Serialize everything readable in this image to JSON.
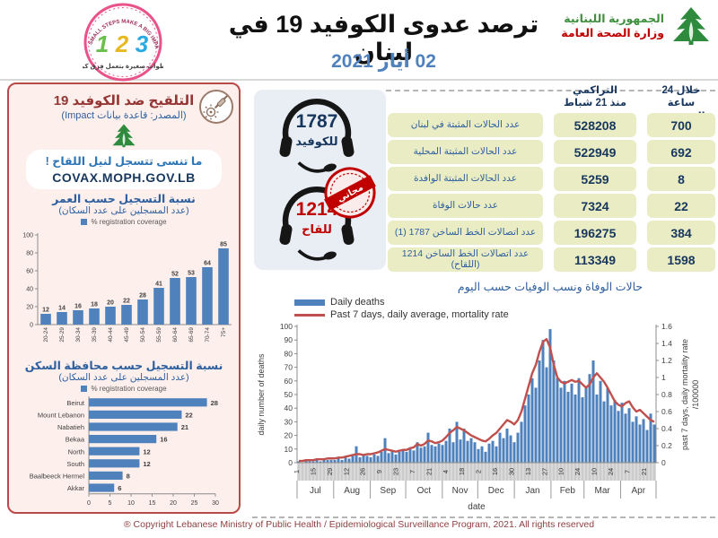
{
  "colors": {
    "bar_blue": "#4f81bd",
    "line_red": "#c0504d",
    "table_cell_bg": "#eaecc3",
    "navy_text": "#17375e",
    "panel_bg": "#fcefec",
    "panel_border": "#b94a48",
    "blue_text": "#2e5f9e",
    "dark_red_title": "#943634",
    "hotline_red": "#c00000",
    "date_blue": "#4f81bd"
  },
  "header": {
    "ministry": {
      "line1": "الجمهورية اللبنانية",
      "line2": "وزارة الصحة العامة"
    },
    "title": "ترصد عدوى الكوفيد 19 في لبنان",
    "date": "02 أيار 2021",
    "campaign_badge": {
      "arc_text": "SMALL STEPS MAKE A BIG IMPACT",
      "numbers": [
        "1",
        "2",
        "3"
      ],
      "bottom_text": "خطوات صغيرة بتعمل فرق كبير"
    }
  },
  "vaccination_panel": {
    "title": "التلقيح ضد الكوفيد 19",
    "source": "(المصدر: قاعدة بيانات Impact)",
    "reminder": "ما تنسى تتسجل لنيل اللقاح !",
    "covax_url": "COVAX.MOPH.GOV.LB"
  },
  "hotlines": {
    "covid": {
      "number": "1787",
      "label": "للكوفيد"
    },
    "vaccine": {
      "number": "1214",
      "label": "للقاح"
    },
    "stamp_text": "مجاني"
  },
  "stats_table": {
    "header_24h_line1": "خلال 24 ساعة",
    "header_24h_line2": "المنصرمة",
    "header_cum_line1": "التراكمي",
    "header_cum_line2": "منذ 21 شباط",
    "rows": [
      {
        "label": "عدد الحالات المثبتة في لبنان",
        "cumulative": "528208",
        "last_24h": "700"
      },
      {
        "label": "عدد الحالات المثبتة المحلية",
        "cumulative": "522949",
        "last_24h": "692"
      },
      {
        "label": "عدد الحالات المثبتة الوافدة",
        "cumulative": "5259",
        "last_24h": "8"
      },
      {
        "label": "عدد حالات الوفاة",
        "cumulative": "7324",
        "last_24h": "22"
      },
      {
        "label": "عدد اتصالات الخط الساخن 1787 (1)",
        "cumulative": "196275",
        "last_24h": "384"
      },
      {
        "label": "عدد اتصالات الخط الساخن 1214 (اللقاح)",
        "cumulative": "113349",
        "last_24h": "1598"
      }
    ]
  },
  "footer": "® Copyright Lebanese Ministry of Public Health / Epidemiological Surveillance Program, 2021. All rights reserved",
  "chart_data": [
    {
      "id": "age_registration",
      "type": "bar",
      "title": "نسبة التسجيل حسب العمر",
      "subtitle": "(عدد المسجلين  على عدد السكان)",
      "legend": "% registration coverage",
      "categories": [
        "20-24",
        "25-29",
        "30-34",
        "35-39",
        "40-44",
        "45-49",
        "50-54",
        "55-59",
        "60-64",
        "65-69",
        "70-74",
        "75+"
      ],
      "values": [
        12,
        14,
        16,
        18,
        20,
        22,
        28,
        41,
        52,
        53,
        64,
        85
      ],
      "ylim": [
        0,
        100
      ],
      "yticks": [
        0,
        20,
        40,
        60,
        80,
        100
      ],
      "bar_color": "#4f81bd"
    },
    {
      "id": "governorate_registration",
      "type": "bar",
      "orientation": "horizontal",
      "title": "نسبة التسجيل حسب محافظة السكن",
      "subtitle": "(عدد المسجلين  على عدد السكان)",
      "legend": "% registration coverage",
      "categories": [
        "Beirut",
        "Mount Lebanon",
        "Nabatieh",
        "Bekaa",
        "North",
        "South",
        "Baalbeeck Hermel",
        "Akkar"
      ],
      "values": [
        28,
        22,
        21,
        16,
        12,
        12,
        8,
        6
      ],
      "xlim": [
        0,
        30
      ],
      "xticks": [
        0,
        5,
        10,
        15,
        20,
        25,
        30
      ],
      "bar_color": "#4f81bd"
    },
    {
      "id": "daily_deaths",
      "type": "bar+line",
      "title": "حالات الوفاة ونسب الوفيات حسب اليوم",
      "xlabel": "date",
      "ylabel_left": "daily number of deaths",
      "ylabel_right": "past 7 days, daily mortality rate",
      "ylabel_right2": "/100000",
      "ylim_left": [
        0,
        100
      ],
      "ylim_right": [
        0,
        1.6
      ],
      "months": [
        {
          "name": "Jul",
          "days": 31
        },
        {
          "name": "Aug",
          "days": 31
        },
        {
          "name": "Sep",
          "days": 30
        },
        {
          "name": "Oct",
          "days": 31
        },
        {
          "name": "Nov",
          "days": 30
        },
        {
          "name": "Dec",
          "days": 31
        },
        {
          "name": "Jan",
          "days": 31
        },
        {
          "name": "Feb",
          "days": 28
        },
        {
          "name": "Mar",
          "days": 31
        },
        {
          "name": "Apr",
          "days": 30
        }
      ],
      "total_days": 304,
      "day_ticks": [
        {
          "label": "1",
          "day": 0
        },
        {
          "label": "15",
          "day": 14
        },
        {
          "label": "29",
          "day": 28
        },
        {
          "label": "12",
          "day": 42
        },
        {
          "label": "26",
          "day": 56
        },
        {
          "label": "9",
          "day": 70
        },
        {
          "label": "23",
          "day": 84
        },
        {
          "label": "7",
          "day": 98
        },
        {
          "label": "21",
          "day": 112
        },
        {
          "label": "4",
          "day": 126
        },
        {
          "label": "18",
          "day": 140
        },
        {
          "label": "2",
          "day": 154
        },
        {
          "label": "16",
          "day": 168
        },
        {
          "label": "30",
          "day": 182
        },
        {
          "label": "13",
          "day": 196
        },
        {
          "label": "27",
          "day": 210
        },
        {
          "label": "10",
          "day": 224
        },
        {
          "label": "24",
          "day": 238
        },
        {
          "label": "10",
          "day": 252
        },
        {
          "label": "24",
          "day": 266
        },
        {
          "label": "7",
          "day": 280
        },
        {
          "label": "21",
          "day": 294
        }
      ],
      "series": [
        {
          "name": "Daily deaths",
          "type": "bar",
          "axis": "left",
          "color": "#4f81bd",
          "values": [
            1,
            0,
            2,
            1,
            1,
            2,
            1,
            3,
            2,
            2,
            2,
            3,
            2,
            4,
            3,
            5,
            12,
            4,
            6,
            5,
            4,
            6,
            5,
            8,
            18,
            7,
            9,
            6,
            8,
            10,
            8,
            10,
            9,
            15,
            11,
            12,
            22,
            13,
            12,
            14,
            13,
            16,
            25,
            15,
            30,
            17,
            25,
            16,
            18,
            15,
            10,
            12,
            8,
            14,
            16,
            12,
            22,
            18,
            25,
            20,
            15,
            22,
            30,
            42,
            50,
            62,
            55,
            75,
            90,
            70,
            98,
            75,
            62,
            55,
            60,
            52,
            58,
            50,
            62,
            48,
            55,
            65,
            75,
            50,
            60,
            45,
            55,
            42,
            46,
            38,
            44,
            36,
            40,
            30,
            34,
            28,
            32,
            24,
            36,
            28
          ]
        },
        {
          "name": "Past 7 days, daily average, mortality rate",
          "type": "line",
          "axis": "right",
          "color": "#c0504d",
          "values": [
            0.02,
            0.02,
            0.03,
            0.03,
            0.03,
            0.04,
            0.04,
            0.04,
            0.05,
            0.05,
            0.05,
            0.06,
            0.06,
            0.07,
            0.08,
            0.09,
            0.1,
            0.1,
            0.09,
            0.1,
            0.1,
            0.11,
            0.12,
            0.14,
            0.16,
            0.15,
            0.14,
            0.13,
            0.14,
            0.15,
            0.15,
            0.17,
            0.18,
            0.22,
            0.2,
            0.22,
            0.26,
            0.25,
            0.23,
            0.24,
            0.26,
            0.3,
            0.35,
            0.38,
            0.42,
            0.4,
            0.38,
            0.35,
            0.32,
            0.3,
            0.28,
            0.26,
            0.25,
            0.28,
            0.32,
            0.35,
            0.4,
            0.45,
            0.5,
            0.48,
            0.45,
            0.5,
            0.6,
            0.75,
            0.9,
            1.05,
            1.15,
            1.3,
            1.42,
            1.45,
            1.35,
            1.15,
            1.0,
            0.95,
            0.93,
            0.95,
            0.97,
            0.95,
            0.96,
            0.92,
            0.88,
            0.92,
            1.0,
            1.05,
            1.0,
            0.95,
            0.88,
            0.8,
            0.72,
            0.68,
            0.66,
            0.7,
            0.72,
            0.65,
            0.6,
            0.62,
            0.58,
            0.54,
            0.5,
            0.48
          ]
        }
      ]
    }
  ]
}
